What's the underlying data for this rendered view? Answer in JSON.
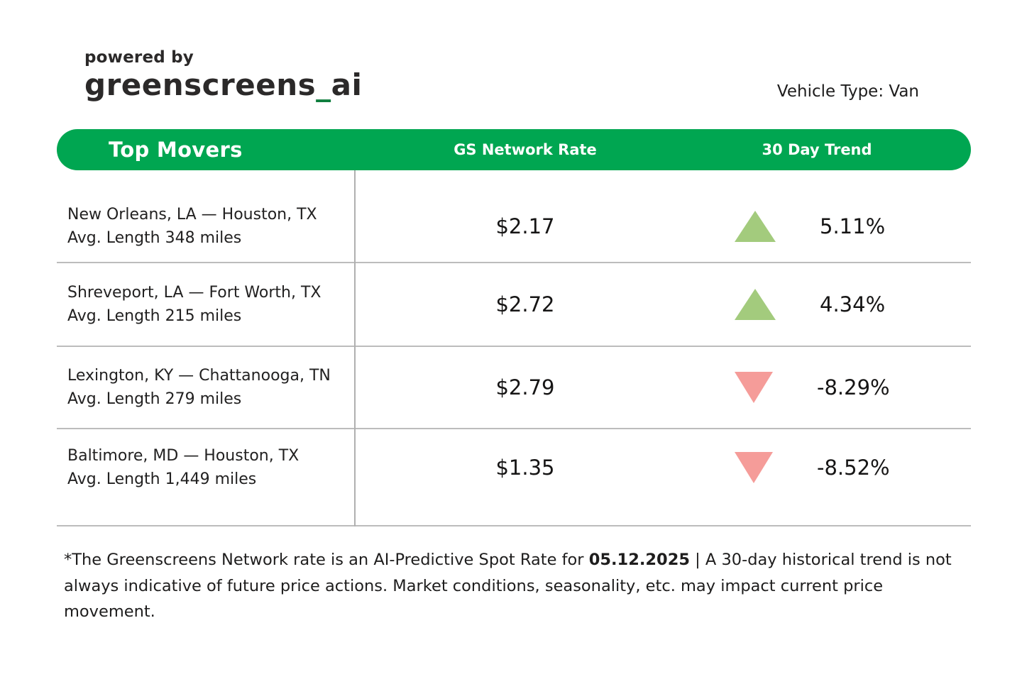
{
  "header": {
    "powered_by": "powered by",
    "brand_main": "greenscreens",
    "brand_underscore": "_",
    "brand_suffix": "ai",
    "vehicle_type": "Vehicle Type: Van"
  },
  "table": {
    "columns": [
      "Top Movers",
      "GS Network Rate",
      "30 Day Trend"
    ],
    "rows": [
      {
        "route": "New Orleans, LA — Houston, TX",
        "avg_length": "Avg. Length 348 miles",
        "rate": "$2.17",
        "trend": "5.11%",
        "direction": "up"
      },
      {
        "route": "Shreveport, LA — Fort Worth, TX",
        "avg_length": "Avg. Length 215 miles",
        "rate": "$2.72",
        "trend": "4.34%",
        "direction": "up"
      },
      {
        "route": "Lexington, KY — Chattanooga, TN",
        "avg_length": "Avg. Length 279 miles",
        "rate": "$2.79",
        "trend": "-8.29%",
        "direction": "down"
      },
      {
        "route": "Baltimore, MD — Houston, TX",
        "avg_length": "Avg. Length 1,449 miles",
        "rate": "$1.35",
        "trend": "-8.52%",
        "direction": "down"
      }
    ]
  },
  "footnote": {
    "part1": "*The Greenscreens Network rate is an AI-Predictive Spot Rate for ",
    "date": "05.12.2025",
    "part2": " | A 30-day historical trend is not always indicative of future price actions. Market conditions, seasonality, etc. may impact current price movement."
  },
  "colors": {
    "header_green": "#00a651",
    "logo_underscore_green": "#0f7e3e",
    "trend_up_green": "#a3cb7d",
    "trend_down_red": "#f59c99",
    "divider_gray": "#bcbcbc",
    "text_dark": "#1f1e1e"
  },
  "chart_data": {
    "type": "table",
    "title": "Top Movers",
    "subtitle": "powered by greenscreens_ai",
    "vehicle_type": "Van",
    "rate_date": "05.12.2025",
    "columns": [
      "Top Movers (lane / avg length)",
      "GS Network Rate",
      "30 Day Trend"
    ],
    "rows": [
      {
        "lane": "New Orleans, LA — Houston, TX",
        "avg_length_miles": 348,
        "gs_network_rate_usd": 2.17,
        "trend_30day_pct": 5.11,
        "direction": "up"
      },
      {
        "lane": "Shreveport, LA — Fort Worth, TX",
        "avg_length_miles": 215,
        "gs_network_rate_usd": 2.72,
        "trend_30day_pct": 4.34,
        "direction": "up"
      },
      {
        "lane": "Lexington, KY — Chattanooga, TN",
        "avg_length_miles": 279,
        "gs_network_rate_usd": 2.79,
        "trend_30day_pct": -8.29,
        "direction": "down"
      },
      {
        "lane": "Baltimore, MD — Houston, TX",
        "avg_length_miles": 1449,
        "gs_network_rate_usd": 1.35,
        "trend_30day_pct": -8.52,
        "direction": "down"
      }
    ]
  }
}
